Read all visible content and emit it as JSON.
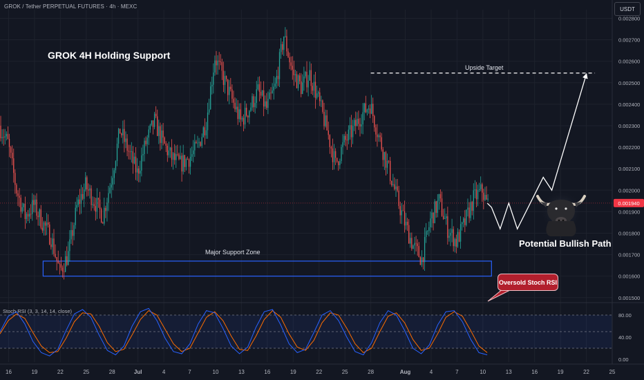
{
  "header": {
    "symbol_title": "GROK / Tether PERPETUAL FUTURES · 4h · MEXC",
    "currency": "USDT"
  },
  "annotations": {
    "main_title": "GROK 4H Holding Support",
    "upside_target": "Upside Target",
    "support_zone": "Major Support Zone",
    "bullish_path": "Potential Bullish Path",
    "rsi_callout": "Oversold Stoch RSI"
  },
  "indicator": {
    "label": "Stoch RSI (3, 3, 14, 14, close)"
  },
  "colors": {
    "up": "#26a69a",
    "down": "#ef5350",
    "zone": "#2962ff",
    "rsi_k": "#2962ff",
    "rsi_d": "#ff6d00",
    "price_badge": "#f23645",
    "background": "#131722"
  },
  "chart_data": {
    "type": "candlestick",
    "interval": "4h",
    "price_axis": {
      "ylim": [
        0.00148,
        0.00284
      ],
      "ticks": [
        "0.001500",
        "0.001600",
        "0.001700",
        "0.001800",
        "0.001900",
        "0.002000",
        "0.002100",
        "0.002200",
        "0.002300",
        "0.002400",
        "0.002500",
        "0.002600",
        "0.002700",
        "0.002800"
      ]
    },
    "current_price": "0.001940",
    "x_axis": {
      "xlim": [
        "2025-06-15",
        "2025-08-25"
      ],
      "ticks": [
        {
          "date": "2025-06-16",
          "label": "16"
        },
        {
          "date": "2025-06-19",
          "label": "19"
        },
        {
          "date": "2025-06-22",
          "label": "22"
        },
        {
          "date": "2025-06-25",
          "label": "25"
        },
        {
          "date": "2025-06-28",
          "label": "28"
        },
        {
          "date": "2025-07-01",
          "label": "Jul"
        },
        {
          "date": "2025-07-04",
          "label": "4"
        },
        {
          "date": "2025-07-07",
          "label": "7"
        },
        {
          "date": "2025-07-10",
          "label": "10"
        },
        {
          "date": "2025-07-13",
          "label": "13"
        },
        {
          "date": "2025-07-16",
          "label": "16"
        },
        {
          "date": "2025-07-19",
          "label": "19"
        },
        {
          "date": "2025-07-22",
          "label": "22"
        },
        {
          "date": "2025-07-25",
          "label": "25"
        },
        {
          "date": "2025-07-28",
          "label": "28"
        },
        {
          "date": "2025-08-01",
          "label": "Aug"
        },
        {
          "date": "2025-08-04",
          "label": "4"
        },
        {
          "date": "2025-08-07",
          "label": "7"
        },
        {
          "date": "2025-08-10",
          "label": "10"
        },
        {
          "date": "2025-08-13",
          "label": "13"
        },
        {
          "date": "2025-08-16",
          "label": "16"
        },
        {
          "date": "2025-08-19",
          "label": "19"
        },
        {
          "date": "2025-08-22",
          "label": "22"
        },
        {
          "date": "2025-08-25",
          "label": "25"
        }
      ]
    },
    "price_path": [
      [
        "2025-06-15",
        0.0023
      ],
      [
        "2025-06-16",
        0.00222
      ],
      [
        "2025-06-17",
        0.002
      ],
      [
        "2025-06-18",
        0.00188
      ],
      [
        "2025-06-19",
        0.00193
      ],
      [
        "2025-06-20",
        0.00185
      ],
      [
        "2025-06-21",
        0.00178
      ],
      [
        "2025-06-22",
        0.00162
      ],
      [
        "2025-06-23",
        0.0017
      ],
      [
        "2025-06-24",
        0.00192
      ],
      [
        "2025-06-25",
        0.00202
      ],
      [
        "2025-06-26",
        0.00195
      ],
      [
        "2025-06-27",
        0.00188
      ],
      [
        "2025-06-28",
        0.00205
      ],
      [
        "2025-06-29",
        0.00228
      ],
      [
        "2025-06-30",
        0.00218
      ],
      [
        "2025-07-01",
        0.00208
      ],
      [
        "2025-07-02",
        0.00222
      ],
      [
        "2025-07-03",
        0.00232
      ],
      [
        "2025-07-04",
        0.00222
      ],
      [
        "2025-07-05",
        0.00215
      ],
      [
        "2025-07-06",
        0.00212
      ],
      [
        "2025-07-07",
        0.00215
      ],
      [
        "2025-07-08",
        0.0022
      ],
      [
        "2025-07-09",
        0.00232
      ],
      [
        "2025-07-10",
        0.00262
      ],
      [
        "2025-07-11",
        0.00252
      ],
      [
        "2025-07-12",
        0.00242
      ],
      [
        "2025-07-13",
        0.00232
      ],
      [
        "2025-07-14",
        0.00238
      ],
      [
        "2025-07-15",
        0.00246
      ],
      [
        "2025-07-16",
        0.00238
      ],
      [
        "2025-07-17",
        0.00248
      ],
      [
        "2025-07-18",
        0.00272
      ],
      [
        "2025-07-19",
        0.00255
      ],
      [
        "2025-07-20",
        0.00248
      ],
      [
        "2025-07-21",
        0.00254
      ],
      [
        "2025-07-22",
        0.00242
      ],
      [
        "2025-07-23",
        0.00228
      ],
      [
        "2025-07-24",
        0.00212
      ],
      [
        "2025-07-25",
        0.00222
      ],
      [
        "2025-07-26",
        0.00228
      ],
      [
        "2025-07-27",
        0.00235
      ],
      [
        "2025-07-28",
        0.0024
      ],
      [
        "2025-07-29",
        0.00225
      ],
      [
        "2025-07-30",
        0.00212
      ],
      [
        "2025-07-31",
        0.00198
      ],
      [
        "2025-08-01",
        0.00185
      ],
      [
        "2025-08-02",
        0.00174
      ],
      [
        "2025-08-03",
        0.00168
      ],
      [
        "2025-08-04",
        0.00186
      ],
      [
        "2025-08-05",
        0.00195
      ],
      [
        "2025-08-06",
        0.00182
      ],
      [
        "2025-08-07",
        0.00176
      ],
      [
        "2025-08-08",
        0.00185
      ],
      [
        "2025-08-09",
        0.00196
      ],
      [
        "2025-08-10",
        0.002
      ],
      [
        "2025-08-10T12:00",
        0.00194
      ]
    ],
    "support_zone": {
      "x_range": [
        "2025-06-20",
        "2025-08-11"
      ],
      "y_range": [
        0.0016,
        0.00167
      ]
    },
    "upside_target": {
      "price": 0.002545,
      "x_range": [
        "2025-07-28",
        "2025-08-23"
      ]
    },
    "projected_path": [
      [
        "2025-08-10T12:00",
        0.00194
      ],
      [
        "2025-08-11",
        0.00192
      ],
      [
        "2025-08-12",
        0.00182
      ],
      [
        "2025-08-13",
        0.00194
      ],
      [
        "2025-08-14",
        0.00182
      ],
      [
        "2025-08-17",
        0.00206
      ],
      [
        "2025-08-18",
        0.002
      ],
      [
        "2025-08-22",
        0.00254
      ]
    ],
    "stoch_rsi": {
      "label": "Stoch RSI (3, 3, 14, 14, close)",
      "ylim": [
        -5,
        100
      ],
      "levels": [
        20,
        50,
        80
      ],
      "ticks": [
        "0.00",
        "40.00",
        "80.00"
      ],
      "k": [
        50,
        78,
        86,
        64,
        32,
        12,
        6,
        18,
        52,
        82,
        90,
        76,
        44,
        16,
        8,
        24,
        60,
        86,
        92,
        70,
        38,
        14,
        10,
        28,
        64,
        88,
        84,
        56,
        24,
        10,
        22,
        58,
        86,
        90,
        62,
        28,
        12,
        18,
        48,
        80,
        88,
        70,
        40,
        14,
        8,
        30,
        66,
        88,
        80,
        52,
        20,
        10,
        26,
        62,
        86,
        88,
        68,
        36,
        12,
        8
      ],
      "d": [
        46,
        70,
        82,
        74,
        48,
        24,
        12,
        14,
        38,
        68,
        84,
        82,
        60,
        30,
        14,
        18,
        44,
        72,
        88,
        80,
        54,
        28,
        14,
        20,
        48,
        76,
        86,
        70,
        42,
        18,
        16,
        42,
        72,
        88,
        76,
        46,
        22,
        16,
        34,
        66,
        84,
        80,
        56,
        28,
        12,
        20,
        50,
        78,
        84,
        66,
        36,
        16,
        20,
        46,
        76,
        86,
        78,
        52,
        24,
        12
      ]
    }
  }
}
